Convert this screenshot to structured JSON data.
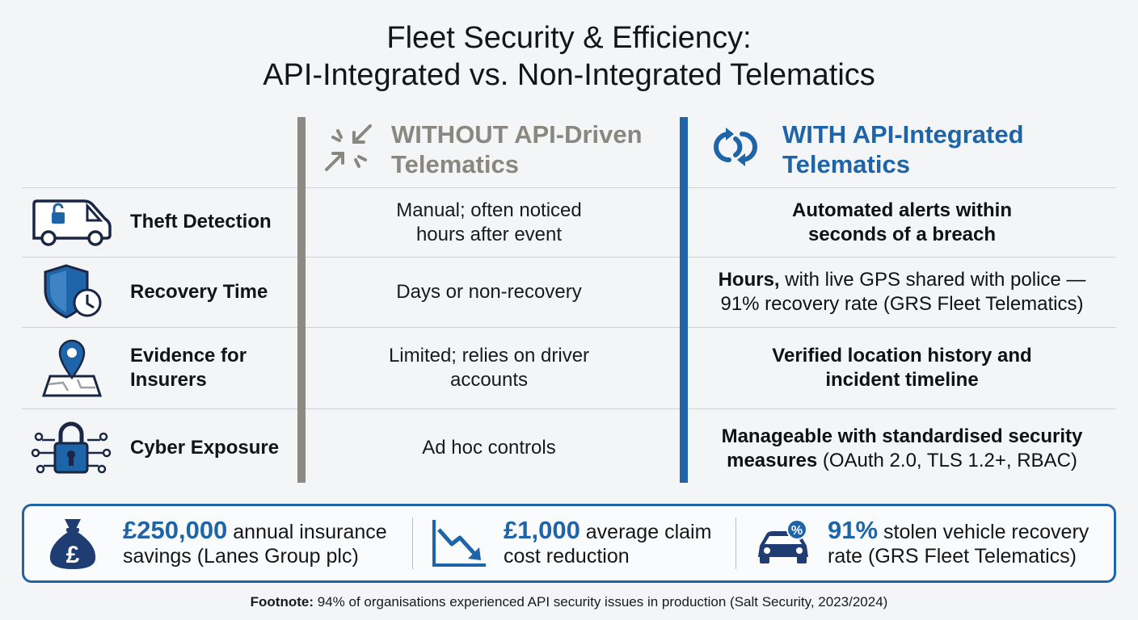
{
  "title": {
    "line1": "Fleet Security & Efficiency:",
    "line2": "API-Integrated vs. Non-Integrated Telematics"
  },
  "columns": {
    "without": {
      "line1": "WITHOUT API-Driven",
      "line2": "Telematics",
      "icon": "arrows-inward-icon",
      "color": "#8a8780"
    },
    "with": {
      "line1": "WITH API-Integrated",
      "line2": "Telematics",
      "icon": "sync-links-icon",
      "color": "#1e64a8"
    }
  },
  "rows": [
    {
      "label": "Theft Detection",
      "icon": "van-lock-icon",
      "without": [
        "Manual; often noticed",
        "hours after event"
      ],
      "with_bold": [
        "Automated alerts within",
        "seconds of a breach"
      ]
    },
    {
      "label": "Recovery Time",
      "icon": "shield-clock-icon",
      "without": [
        "Days or non-recovery"
      ],
      "with_lead_bold": "Hours,",
      "with_lead_rest": " with live GPS shared with police —",
      "with_line2": "91% recovery rate (GRS Fleet Telematics)"
    },
    {
      "label_line1": "Evidence for",
      "label_line2": "Insurers",
      "icon": "map-pin-icon",
      "without": [
        "Limited; relies on driver",
        "accounts"
      ],
      "with_bold": [
        "Verified location history and",
        "incident timeline"
      ]
    },
    {
      "label": "Cyber Exposure",
      "icon": "padlock-network-icon",
      "without": [
        "Ad hoc controls"
      ],
      "with_line1_bold": "Manageable with standardised security",
      "with_line2_bold": "measures",
      "with_line2_rest": " (OAuth 2.0, TLS 1.2+, RBAC)"
    }
  ],
  "stats": [
    {
      "icon": "money-bag-pound-icon",
      "value": "£250,000",
      "text1": " annual insurance",
      "text2": "savings (Lanes Group plc)"
    },
    {
      "icon": "declining-chart-icon",
      "value": "£1,000",
      "text1": " average claim",
      "text2": "cost reduction"
    },
    {
      "icon": "car-percent-icon",
      "value": "91%",
      "text1": " stolen vehicle recovery",
      "text2": "rate (GRS Fleet Telematics)"
    }
  ],
  "footnote": {
    "label": "Footnote:",
    "text": " 94% of organisations experienced API security issues in production (Salt Security, 2023/2024)"
  },
  "colors": {
    "accent": "#1e64a8",
    "neutral": "#8a8780",
    "navy": "#1f3c73"
  }
}
